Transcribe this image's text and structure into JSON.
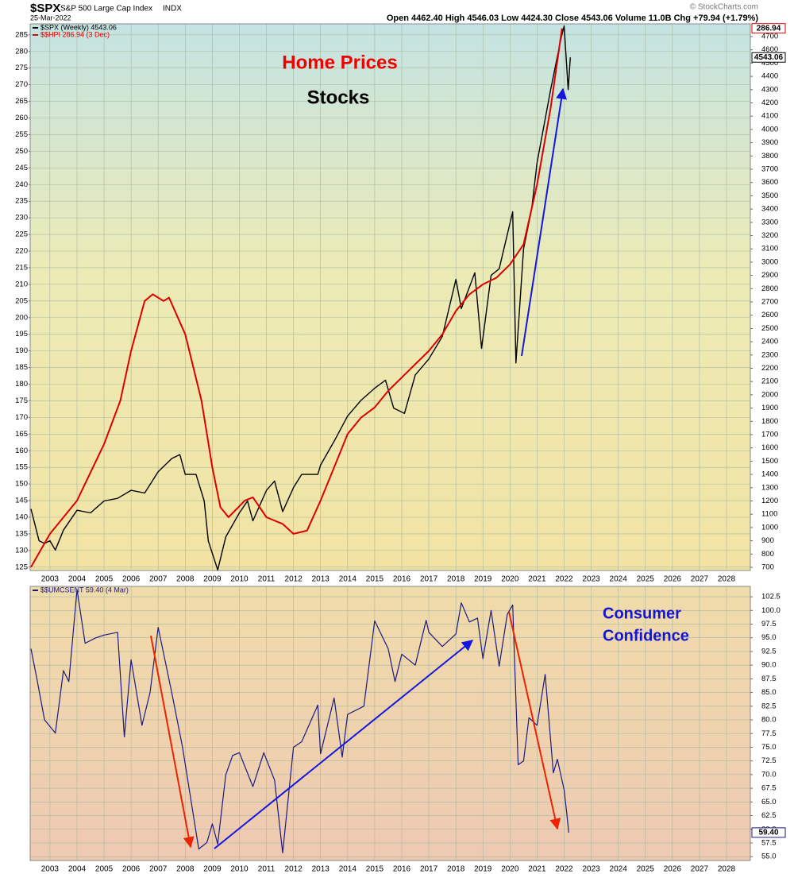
{
  "chart_data": [
    {
      "type": "line",
      "title": "$SPX",
      "subtitle": "S&P 500 Large Cap Index",
      "exchange": "INDX",
      "date": "25-Mar-2022",
      "quote": "Open 4462.40 High 4546.03 Low 4424.30 Close 4543.06 Volume 11.0B Chg +79.94 (+1.79%)",
      "source": "© StockCharts.com",
      "xlim": [
        2002.27,
        2028.88
      ],
      "xticks": [
        2003,
        2004,
        2005,
        2006,
        2007,
        2008,
        2009,
        2010,
        2011,
        2012,
        2013,
        2014,
        2015,
        2016,
        2017,
        2018,
        2019,
        2020,
        2021,
        2022,
        2023,
        2024,
        2025,
        2026,
        2027,
        2028
      ],
      "ylim": [
        124,
        288.3
      ],
      "yticks": [
        125,
        130,
        135,
        140,
        145,
        150,
        155,
        160,
        165,
        170,
        175,
        180,
        185,
        190,
        195,
        200,
        205,
        210,
        215,
        220,
        225,
        230,
        235,
        240,
        245,
        250,
        255,
        260,
        265,
        270,
        275,
        280,
        285
      ],
      "y_axis_side": "left",
      "y2lim": [
        676,
        4796
      ],
      "y2ticks": [
        700,
        800,
        900,
        1000,
        1100,
        1200,
        1300,
        1400,
        1500,
        1600,
        1700,
        1800,
        1900,
        2000,
        2100,
        2200,
        2300,
        2400,
        2500,
        2600,
        2700,
        2800,
        2900,
        3000,
        3100,
        3200,
        3300,
        3400,
        3500,
        3600,
        3700,
        3800,
        3900,
        4000,
        4100,
        4200,
        4300,
        4400,
        4500,
        4600,
        4700
      ],
      "grid": true,
      "annotations": [
        {
          "text": "Home Prices",
          "color": "#ee0000"
        },
        {
          "text": "Stocks",
          "color": "#000000"
        }
      ],
      "series": [
        {
          "name": "$SPX (Weekly) 4543.06",
          "color": "#000000",
          "axis": "y2",
          "last_value": 4543.06,
          "x": [
            2002.3,
            2002.6,
            2002.8,
            2003.0,
            2003.2,
            2003.5,
            2004.0,
            2004.5,
            2005.0,
            2005.5,
            2006.0,
            2006.5,
            2007.0,
            2007.5,
            2007.8,
            2008.0,
            2008.4,
            2008.7,
            2008.85,
            2009.2,
            2009.5,
            2010.0,
            2010.3,
            2010.5,
            2011.0,
            2011.3,
            2011.6,
            2012.0,
            2012.3,
            2012.9,
            2013.0,
            2013.5,
            2014.0,
            2014.5,
            2015.0,
            2015.4,
            2015.7,
            2016.1,
            2016.5,
            2017.0,
            2017.5,
            2018.0,
            2018.2,
            2018.7,
            2018.95,
            2019.3,
            2019.6,
            2020.1,
            2020.22,
            2020.5,
            2020.8,
            2021.0,
            2021.5,
            2021.9,
            2022.0,
            2022.15,
            2022.23
          ],
          "values": [
            1140,
            900,
            880,
            900,
            830,
            980,
            1130,
            1110,
            1200,
            1220,
            1280,
            1260,
            1420,
            1520,
            1550,
            1400,
            1400,
            1200,
            900,
            680,
            930,
            1110,
            1200,
            1050,
            1280,
            1350,
            1120,
            1300,
            1400,
            1400,
            1470,
            1650,
            1840,
            1960,
            2050,
            2110,
            1900,
            1860,
            2150,
            2270,
            2440,
            2870,
            2650,
            2920,
            2350,
            2900,
            2950,
            3380,
            2240,
            3100,
            3400,
            3750,
            4300,
            4700,
            4780,
            4300,
            4543.06
          ]
        },
        {
          "name": "$$HPI 286.94 (3 Dec)",
          "color": "#dd0000",
          "axis": "y",
          "last_value": 286.94,
          "x": [
            2002.3,
            2003.0,
            2004.0,
            2005.0,
            2005.6,
            2006.0,
            2006.5,
            2006.8,
            2007.2,
            2007.4,
            2008.0,
            2008.6,
            2009.0,
            2009.3,
            2009.6,
            2010.2,
            2010.5,
            2011.0,
            2011.6,
            2012.0,
            2012.5,
            2013.0,
            2013.5,
            2014.0,
            2014.5,
            2015.0,
            2015.5,
            2016.0,
            2016.5,
            2017.0,
            2017.5,
            2018.0,
            2018.5,
            2019.0,
            2019.5,
            2020.0,
            2020.5,
            2021.0,
            2021.5,
            2021.92
          ],
          "values": [
            125,
            135,
            145,
            162,
            175,
            190,
            205,
            207,
            205,
            206,
            195,
            175,
            155,
            143,
            140,
            145,
            146,
            140,
            138,
            135,
            136,
            145,
            155,
            165,
            170,
            173,
            178,
            182,
            186,
            190,
            195,
            202,
            207,
            210,
            212,
            216,
            222,
            240,
            263,
            286.94
          ]
        }
      ]
    },
    {
      "type": "line",
      "xlim": [
        2002.27,
        2028.88
      ],
      "xticks": [
        2003,
        2004,
        2005,
        2006,
        2007,
        2008,
        2009,
        2010,
        2011,
        2012,
        2013,
        2014,
        2015,
        2016,
        2017,
        2018,
        2019,
        2020,
        2021,
        2022,
        2023,
        2024,
        2025,
        2026,
        2027,
        2028
      ],
      "ylim": [
        54.3,
        104.4
      ],
      "yticks": [
        {
          "value": 55,
          "label": "55.0"
        },
        57.5,
        {
          "value": 60,
          "label": "60.0"
        },
        62.5,
        {
          "value": 65,
          "label": "65.0"
        },
        67.5,
        {
          "value": 70,
          "label": "70.0"
        },
        72.5,
        {
          "value": 75,
          "label": "75.0"
        },
        77.5,
        {
          "value": 80,
          "label": "80.0"
        },
        82.5,
        {
          "value": 85,
          "label": "85.0"
        },
        87.5,
        {
          "value": 90,
          "label": "90.0"
        },
        92.5,
        {
          "value": 95,
          "label": "95.0"
        },
        97.5,
        {
          "value": 100,
          "label": "100.0"
        },
        102.5
      ],
      "y_axis_side": "right",
      "grid": true,
      "annotations": [
        {
          "text": "Consumer",
          "color": "#1515d0"
        },
        {
          "text": "Confidence",
          "color": "#1515d0"
        }
      ],
      "series": [
        {
          "name": "$$UMCSENT 59.40 (4 Mar)",
          "color": "#1a1a80",
          "axis": "y",
          "last_value": {
            "value": 59.4,
            "label": "59.40"
          },
          "x": [
            2002.3,
            2002.5,
            2002.8,
            2003.2,
            2003.5,
            2003.7,
            2004.0,
            2004.3,
            2004.7,
            2005.0,
            2005.5,
            2005.75,
            2006.0,
            2006.4,
            2006.7,
            2007.0,
            2007.5,
            2007.9,
            2008.3,
            2008.5,
            2008.8,
            2009.0,
            2009.2,
            2009.5,
            2009.75,
            2010.0,
            2010.5,
            2010.9,
            2011.3,
            2011.6,
            2012.0,
            2012.3,
            2012.9,
            2013.0,
            2013.5,
            2013.8,
            2014.0,
            2014.6,
            2015.0,
            2015.5,
            2015.75,
            2016.0,
            2016.5,
            2016.9,
            2017.0,
            2017.5,
            2018.0,
            2018.2,
            2018.5,
            2018.8,
            2019.0,
            2019.3,
            2019.6,
            2019.9,
            2020.1,
            2020.3,
            2020.5,
            2020.7,
            2021.0,
            2021.3,
            2021.6,
            2021.75,
            2022.0,
            2022.1,
            2022.17
          ],
          "values": [
            93,
            88,
            80,
            77.6,
            89,
            87,
            103.8,
            94,
            95,
            95.5,
            96,
            76.9,
            91,
            79,
            85,
            96.9,
            85,
            75,
            62.6,
            56.4,
            57.6,
            61,
            57.3,
            70,
            73.5,
            74,
            67.8,
            74,
            69,
            55.7,
            75,
            76,
            82.7,
            73.8,
            84,
            73.2,
            81,
            82.5,
            98.1,
            93,
            87,
            92,
            90,
            98.2,
            96,
            93.4,
            95.7,
            101.4,
            97.9,
            98.6,
            91.2,
            100,
            89.8,
            99.3,
            101,
            71.8,
            72.5,
            80.4,
            79,
            88.3,
            70.3,
            72.8,
            67.2,
            62.8,
            59.4
          ]
        }
      ]
    }
  ]
}
